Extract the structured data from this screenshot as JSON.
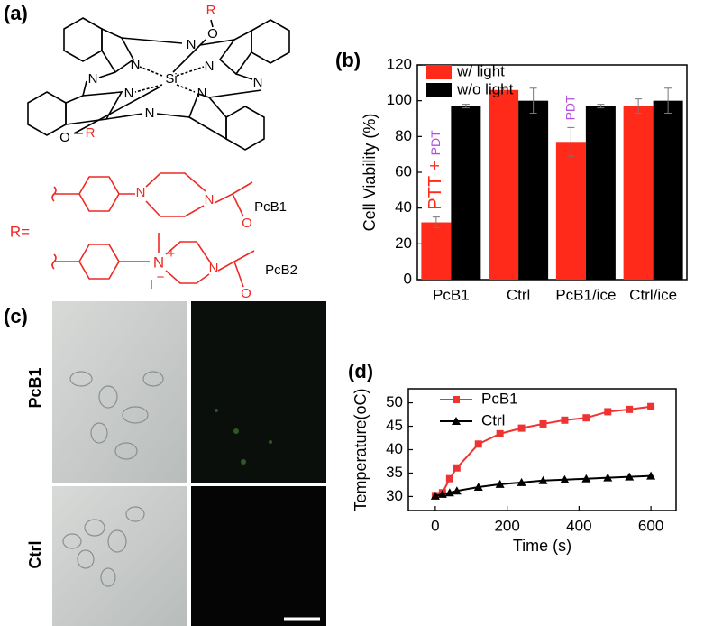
{
  "panel_labels": [
    "(a)",
    "(b)",
    "(c)",
    "(d)"
  ],
  "structure": {
    "atoms": [
      "R",
      "O",
      "N",
      "N",
      "N",
      "Si",
      "N",
      "N",
      "N",
      "N",
      "N",
      "O",
      "R"
    ],
    "r_label": "R=",
    "substituents": [
      {
        "atoms": [
          "N",
          "N",
          "O"
        ],
        "name": "PcB1"
      },
      {
        "atoms": [
          "N",
          "+",
          "I",
          "−",
          "N",
          "O"
        ],
        "name": "PcB2"
      }
    ]
  },
  "images": {
    "row_labels": [
      "PcB1",
      "Ctrl"
    ]
  },
  "chart_data": [
    {
      "type": "bar",
      "y_label": "Cell Viability (%)",
      "categories": [
        "PcB1",
        "Ctrl",
        "PcB1/ice",
        "Ctrl/ice"
      ],
      "series": [
        {
          "name": "w/ light",
          "color": "#ff2a1a",
          "values": [
            32,
            106,
            77,
            97
          ],
          "errors": [
            3,
            1,
            8,
            4
          ]
        },
        {
          "name": "w/o light",
          "color": "#000000",
          "values": [
            97,
            100,
            97,
            100
          ],
          "errors": [
            1,
            7,
            1,
            7
          ]
        }
      ],
      "ylim": [
        0,
        120
      ],
      "yticks": [
        0,
        20,
        40,
        60,
        80,
        100,
        120
      ],
      "legend": "upper left",
      "annotations": [
        [
          {
            "text": "PTT",
            "color": "#ff2a1a"
          },
          {
            "text": "+",
            "color": "#ff2a1a"
          },
          {
            "text": "PDT",
            "color": "#b44ee0"
          }
        ],
        [
          {
            "text": "PDT",
            "color": "#b44ee0"
          }
        ]
      ]
    },
    {
      "type": "line",
      "x_label": "Time (s)",
      "y_label": "Temperature(oC)",
      "x": [
        0,
        20,
        40,
        60,
        120,
        180,
        240,
        300,
        360,
        420,
        480,
        540,
        600
      ],
      "series": [
        {
          "name": "PcB1",
          "color": "#ee3333",
          "marker": "square",
          "values": [
            30.2,
            30.8,
            33.8,
            36.1,
            41.2,
            43.4,
            44.6,
            45.5,
            46.3,
            46.8,
            48.1,
            48.6,
            49.2
          ]
        },
        {
          "name": "Ctrl",
          "color": "#000000",
          "marker": "triangle",
          "values": [
            30.1,
            30.5,
            30.8,
            31.2,
            32.0,
            32.6,
            33.0,
            33.4,
            33.6,
            33.8,
            34.0,
            34.2,
            34.4
          ]
        }
      ],
      "xlim": [
        -75,
        670
      ],
      "ylim": [
        27,
        53
      ],
      "xticks": [
        0,
        200,
        400,
        600
      ],
      "yticks": [
        30,
        35,
        40,
        45,
        50
      ],
      "legend": "upper left"
    }
  ]
}
